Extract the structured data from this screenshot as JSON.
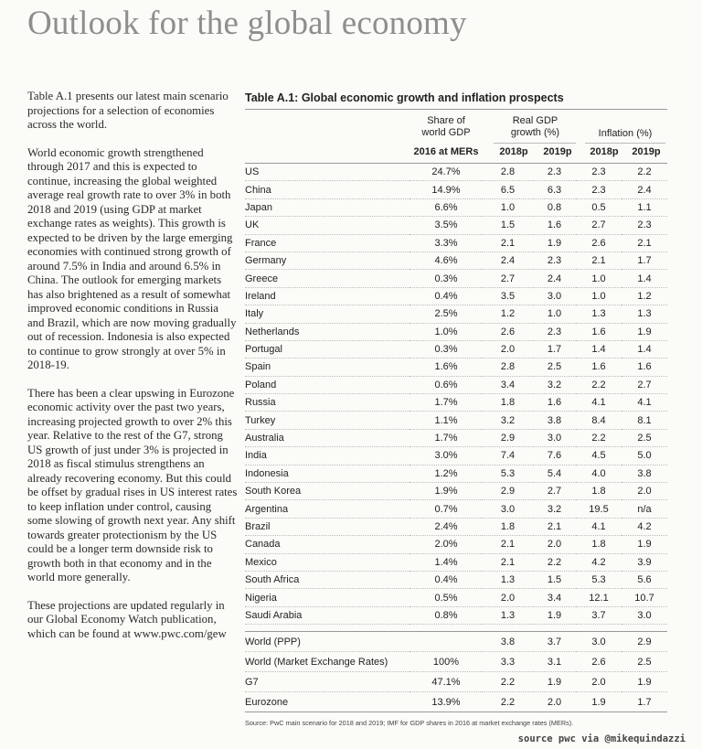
{
  "page_title": "Outlook for the global economy",
  "intro_paragraphs": [
    "Table A.1 presents our latest main scenario projections for a selection of economies across the world.",
    "World economic growth strengthened through 2017 and this is expected to continue, increasing the global weighted average real growth rate to over 3% in both 2018 and 2019 (using GDP at market exchange rates as weights). This growth is expected to be driven by the large emerging economies with continued strong growth of around 7.5% in India and around 6.5% in China. The outlook for emerging markets has also brightened as a result of somewhat improved economic conditions in Russia and Brazil, which are now moving gradually out of recession. Indonesia is also expected to continue to grow strongly at over 5% in 2018-19.",
    "There has been a clear upswing in Eurozone economic activity over the past two years, increasing projected growth to over 2% this year. Relative to the rest of the G7, strong US growth of just under 3% is projected in 2018 as fiscal stimulus strengthens an already recovering economy. But this could be offset by gradual rises in US interest rates to keep inflation under control, causing some slowing of growth next year. Any shift towards greater protectionism by the US could be a longer term downside risk to growth both in that economy and in the world more generally.",
    "These projections are updated regularly in our Global Economy Watch publication, which can be found at www.pwc.com/gew"
  ],
  "table": {
    "title": "Table A.1: Global economic growth and inflation prospects",
    "header": {
      "share_label": "Share of\nworld GDP",
      "share_sub": "2016 at MERs",
      "gdp_label": "Real GDP\ngrowth (%)",
      "inflation_label": "Inflation (%)",
      "year_2018": "2018p",
      "year_2019": "2019p"
    },
    "rows": [
      [
        "US",
        "24.7%",
        "2.8",
        "2.3",
        "2.3",
        "2.2"
      ],
      [
        "China",
        "14.9%",
        "6.5",
        "6.3",
        "2.3",
        "2.4"
      ],
      [
        "Japan",
        "6.6%",
        "1.0",
        "0.8",
        "0.5",
        "1.1"
      ],
      [
        "UK",
        "3.5%",
        "1.5",
        "1.6",
        "2.7",
        "2.3"
      ],
      [
        "France",
        "3.3%",
        "2.1",
        "1.9",
        "2.6",
        "2.1"
      ],
      [
        "Germany",
        "4.6%",
        "2.4",
        "2.3",
        "2.1",
        "1.7"
      ],
      [
        "Greece",
        "0.3%",
        "2.7",
        "2.4",
        "1.0",
        "1.4"
      ],
      [
        "Ireland",
        "0.4%",
        "3.5",
        "3.0",
        "1.0",
        "1.2"
      ],
      [
        "Italy",
        "2.5%",
        "1.2",
        "1.0",
        "1.3",
        "1.3"
      ],
      [
        "Netherlands",
        "1.0%",
        "2.6",
        "2.3",
        "1.6",
        "1.9"
      ],
      [
        "Portugal",
        "0.3%",
        "2.0",
        "1.7",
        "1.4",
        "1.4"
      ],
      [
        "Spain",
        "1.6%",
        "2.8",
        "2.5",
        "1.6",
        "1.6"
      ],
      [
        "Poland",
        "0.6%",
        "3.4",
        "3.2",
        "2.2",
        "2.7"
      ],
      [
        "Russia",
        "1.7%",
        "1.8",
        "1.6",
        "4.1",
        "4.1"
      ],
      [
        "Turkey",
        "1.1%",
        "3.2",
        "3.8",
        "8.4",
        "8.1"
      ],
      [
        "Australia",
        "1.7%",
        "2.9",
        "3.0",
        "2.2",
        "2.5"
      ],
      [
        "India",
        "3.0%",
        "7.4",
        "7.6",
        "4.5",
        "5.0"
      ],
      [
        "Indonesia",
        "1.2%",
        "5.3",
        "5.4",
        "4.0",
        "3.8"
      ],
      [
        "South Korea",
        "1.9%",
        "2.9",
        "2.7",
        "1.8",
        "2.0"
      ],
      [
        "Argentina",
        "0.7%",
        "3.0",
        "3.2",
        "19.5",
        "n/a"
      ],
      [
        "Brazil",
        "2.4%",
        "1.8",
        "2.1",
        "4.1",
        "4.2"
      ],
      [
        "Canada",
        "2.0%",
        "2.1",
        "2.0",
        "1.8",
        "1.9"
      ],
      [
        "Mexico",
        "1.4%",
        "2.1",
        "2.2",
        "4.2",
        "3.9"
      ],
      [
        "South Africa",
        "0.4%",
        "1.3",
        "1.5",
        "5.3",
        "5.6"
      ],
      [
        "Nigeria",
        "0.5%",
        "2.0",
        "3.4",
        "12.1",
        "10.7"
      ],
      [
        "Saudi Arabia",
        "0.8%",
        "1.3",
        "1.9",
        "3.7",
        "3.0"
      ]
    ],
    "aggregates": [
      [
        "World (PPP)",
        "",
        "3.8",
        "3.7",
        "3.0",
        "2.9"
      ],
      [
        "World (Market Exchange Rates)",
        "100%",
        "3.3",
        "3.1",
        "2.6",
        "2.5"
      ],
      [
        "G7",
        "47.1%",
        "2.2",
        "1.9",
        "2.0",
        "1.9"
      ],
      [
        "Eurozone",
        "13.9%",
        "2.2",
        "2.0",
        "1.9",
        "1.7"
      ]
    ],
    "source": "Source: PwC main scenario for 2018 and 2019; IMF for GDP shares in 2016 at market exchange rates (MERs)."
  },
  "credit": "source pwc via @mikequindazzi"
}
